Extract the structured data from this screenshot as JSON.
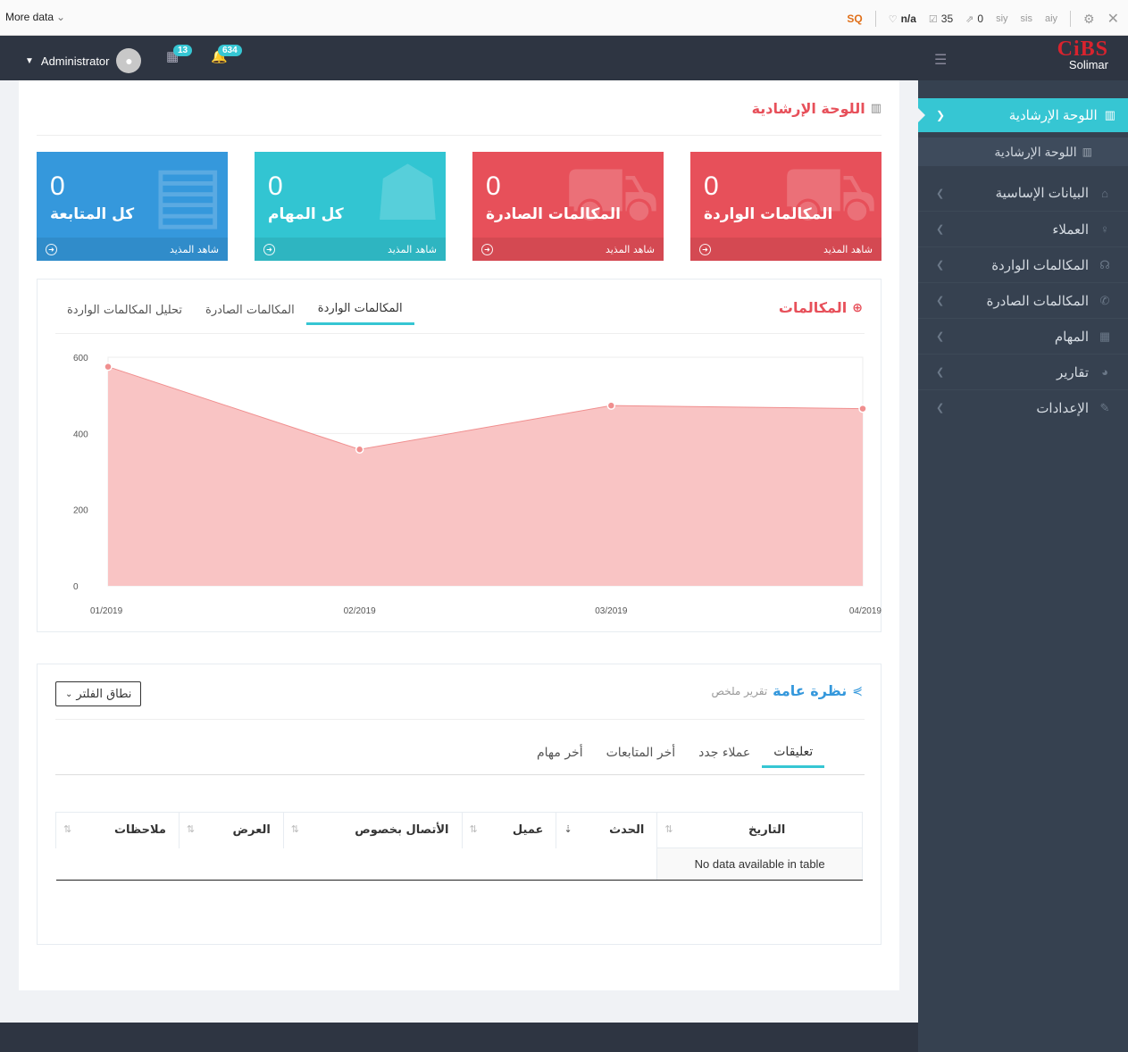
{
  "seobar": {
    "more_label": "More data",
    "sq_label": "SQ",
    "items": [
      {
        "icon": "diamond-icon",
        "value": "n/a"
      },
      {
        "icon": "index-icon",
        "value": "35"
      },
      {
        "icon": "external-link-icon",
        "value": "0"
      },
      {
        "icon": "similar-icon",
        "value": "siy"
      },
      {
        "icon": "page-icon",
        "value": "sis"
      },
      {
        "icon": "another-icon",
        "value": "aiy"
      }
    ]
  },
  "header": {
    "user_name": "Administrator",
    "tasks_badge": "13",
    "notifications_badge": "634",
    "logo_text": "CiBS",
    "logo_sub": "Solimar"
  },
  "sidebar": {
    "active_label": "اللوحة الإرشادية",
    "sub_label": "اللوحة الإرشادية",
    "items": [
      {
        "label": "البيانات الإساسية",
        "icon": "home-icon"
      },
      {
        "label": "العملاء",
        "icon": "user-icon"
      },
      {
        "label": "المكالمات الواردة",
        "icon": "headset-icon"
      },
      {
        "label": "المكالمات الصادرة",
        "icon": "phone-icon"
      },
      {
        "label": "المهام",
        "icon": "calendar-icon"
      },
      {
        "label": "تقارير",
        "icon": "pie-chart-icon"
      },
      {
        "label": "الإعدادات",
        "icon": "wrench-icon"
      }
    ]
  },
  "page": {
    "title": "اللوحة الإرشادية",
    "stats": [
      {
        "value": "0",
        "label": "المكالمات الواردة",
        "more": "شاهد المذيد",
        "color": "#e7505a"
      },
      {
        "value": "0",
        "label": "المكالمات الصادرة",
        "more": "شاهد المذيد",
        "color": "#e7505a"
      },
      {
        "value": "0",
        "label": "كل المهام",
        "more": "شاهد المذيد",
        "color": "#32c5d2"
      },
      {
        "value": "0",
        "label": "كل المتابعة",
        "more": "شاهد المذيد",
        "color": "#3598dc"
      }
    ]
  },
  "calls_panel": {
    "title": "المكالمات",
    "tabs": [
      "المكالمات الواردة",
      "المكالمات الصادرة",
      "تحليل المكالمات الواردة"
    ]
  },
  "chart_data": {
    "type": "area",
    "x": [
      "01/2019",
      "02/2019",
      "03/2019",
      "04/2019"
    ],
    "y_ticks": [
      "0",
      "200",
      "400",
      "600"
    ],
    "ylim": [
      0,
      600
    ],
    "series": [
      {
        "values": [
          575,
          358,
          473,
          465
        ],
        "color": "#f9c4c4",
        "line_color": "#f08f8f"
      }
    ],
    "grid": true
  },
  "overview": {
    "title": "نظرة عامة",
    "subtitle": "تقرير ملخص",
    "filter_label": "نطاق الفلتر",
    "tabs": [
      "تعليقات",
      "عملاء جدد",
      "أخر المتابعات",
      "أخر مهام"
    ],
    "table": {
      "columns": [
        "التاريخ",
        "الحدث",
        "عميل",
        "الأتصال بخصوص",
        "العرض",
        "ملاحظات"
      ],
      "empty": "No data available in table"
    }
  }
}
